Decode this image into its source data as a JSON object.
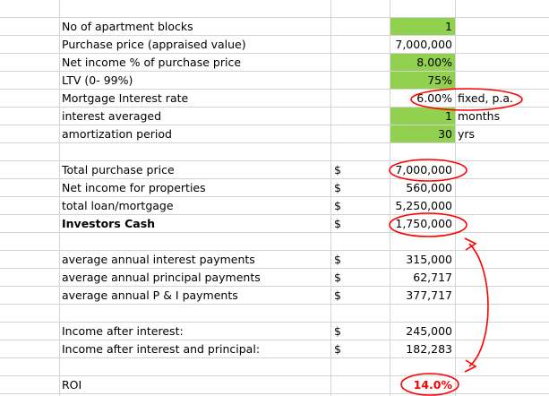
{
  "inputs": [
    {
      "label": "No of apartment blocks",
      "value": "1",
      "unit": ""
    },
    {
      "label": "Purchase price (appraised value)",
      "value": "7,000,000",
      "unit": ""
    },
    {
      "label": "Net income % of purchase price",
      "value": "8.00%",
      "unit": ""
    },
    {
      "label": "LTV (0- 99%)",
      "value": "75%",
      "unit": ""
    },
    {
      "label": "Mortgage Interest rate",
      "value": "6.00%",
      "unit": "fixed, p.a."
    },
    {
      "label": "interest averaged",
      "value": "1",
      "unit": "months"
    },
    {
      "label": "amortization period",
      "value": "30",
      "unit": "yrs"
    }
  ],
  "totals": [
    {
      "label": "Total purchase price",
      "currency": "$",
      "value": "7,000,000"
    },
    {
      "label": "Net income for properties",
      "currency": "$",
      "value": "560,000"
    },
    {
      "label": "total loan/mortgage",
      "currency": "$",
      "value": "5,250,000"
    },
    {
      "label": "Investors Cash",
      "currency": "$",
      "value": "1,750,000"
    }
  ],
  "payments": [
    {
      "label": "average annual interest payments",
      "currency": "$",
      "value": "315,000"
    },
    {
      "label": "average annual principal payments",
      "currency": "$",
      "value": "62,717"
    },
    {
      "label": "average annual P & I payments",
      "currency": "$",
      "value": "377,717"
    }
  ],
  "income": [
    {
      "label": "Income after interest:",
      "currency": "$",
      "value": "245,000"
    },
    {
      "label": "Income after interest and principal:",
      "currency": "$",
      "value": "182,283"
    }
  ],
  "roi": {
    "label": "ROI",
    "value": "14.0%"
  },
  "colors": {
    "input_fill": "#92d050",
    "grid": "#d4d4d4",
    "annotation": "#ff0000"
  }
}
